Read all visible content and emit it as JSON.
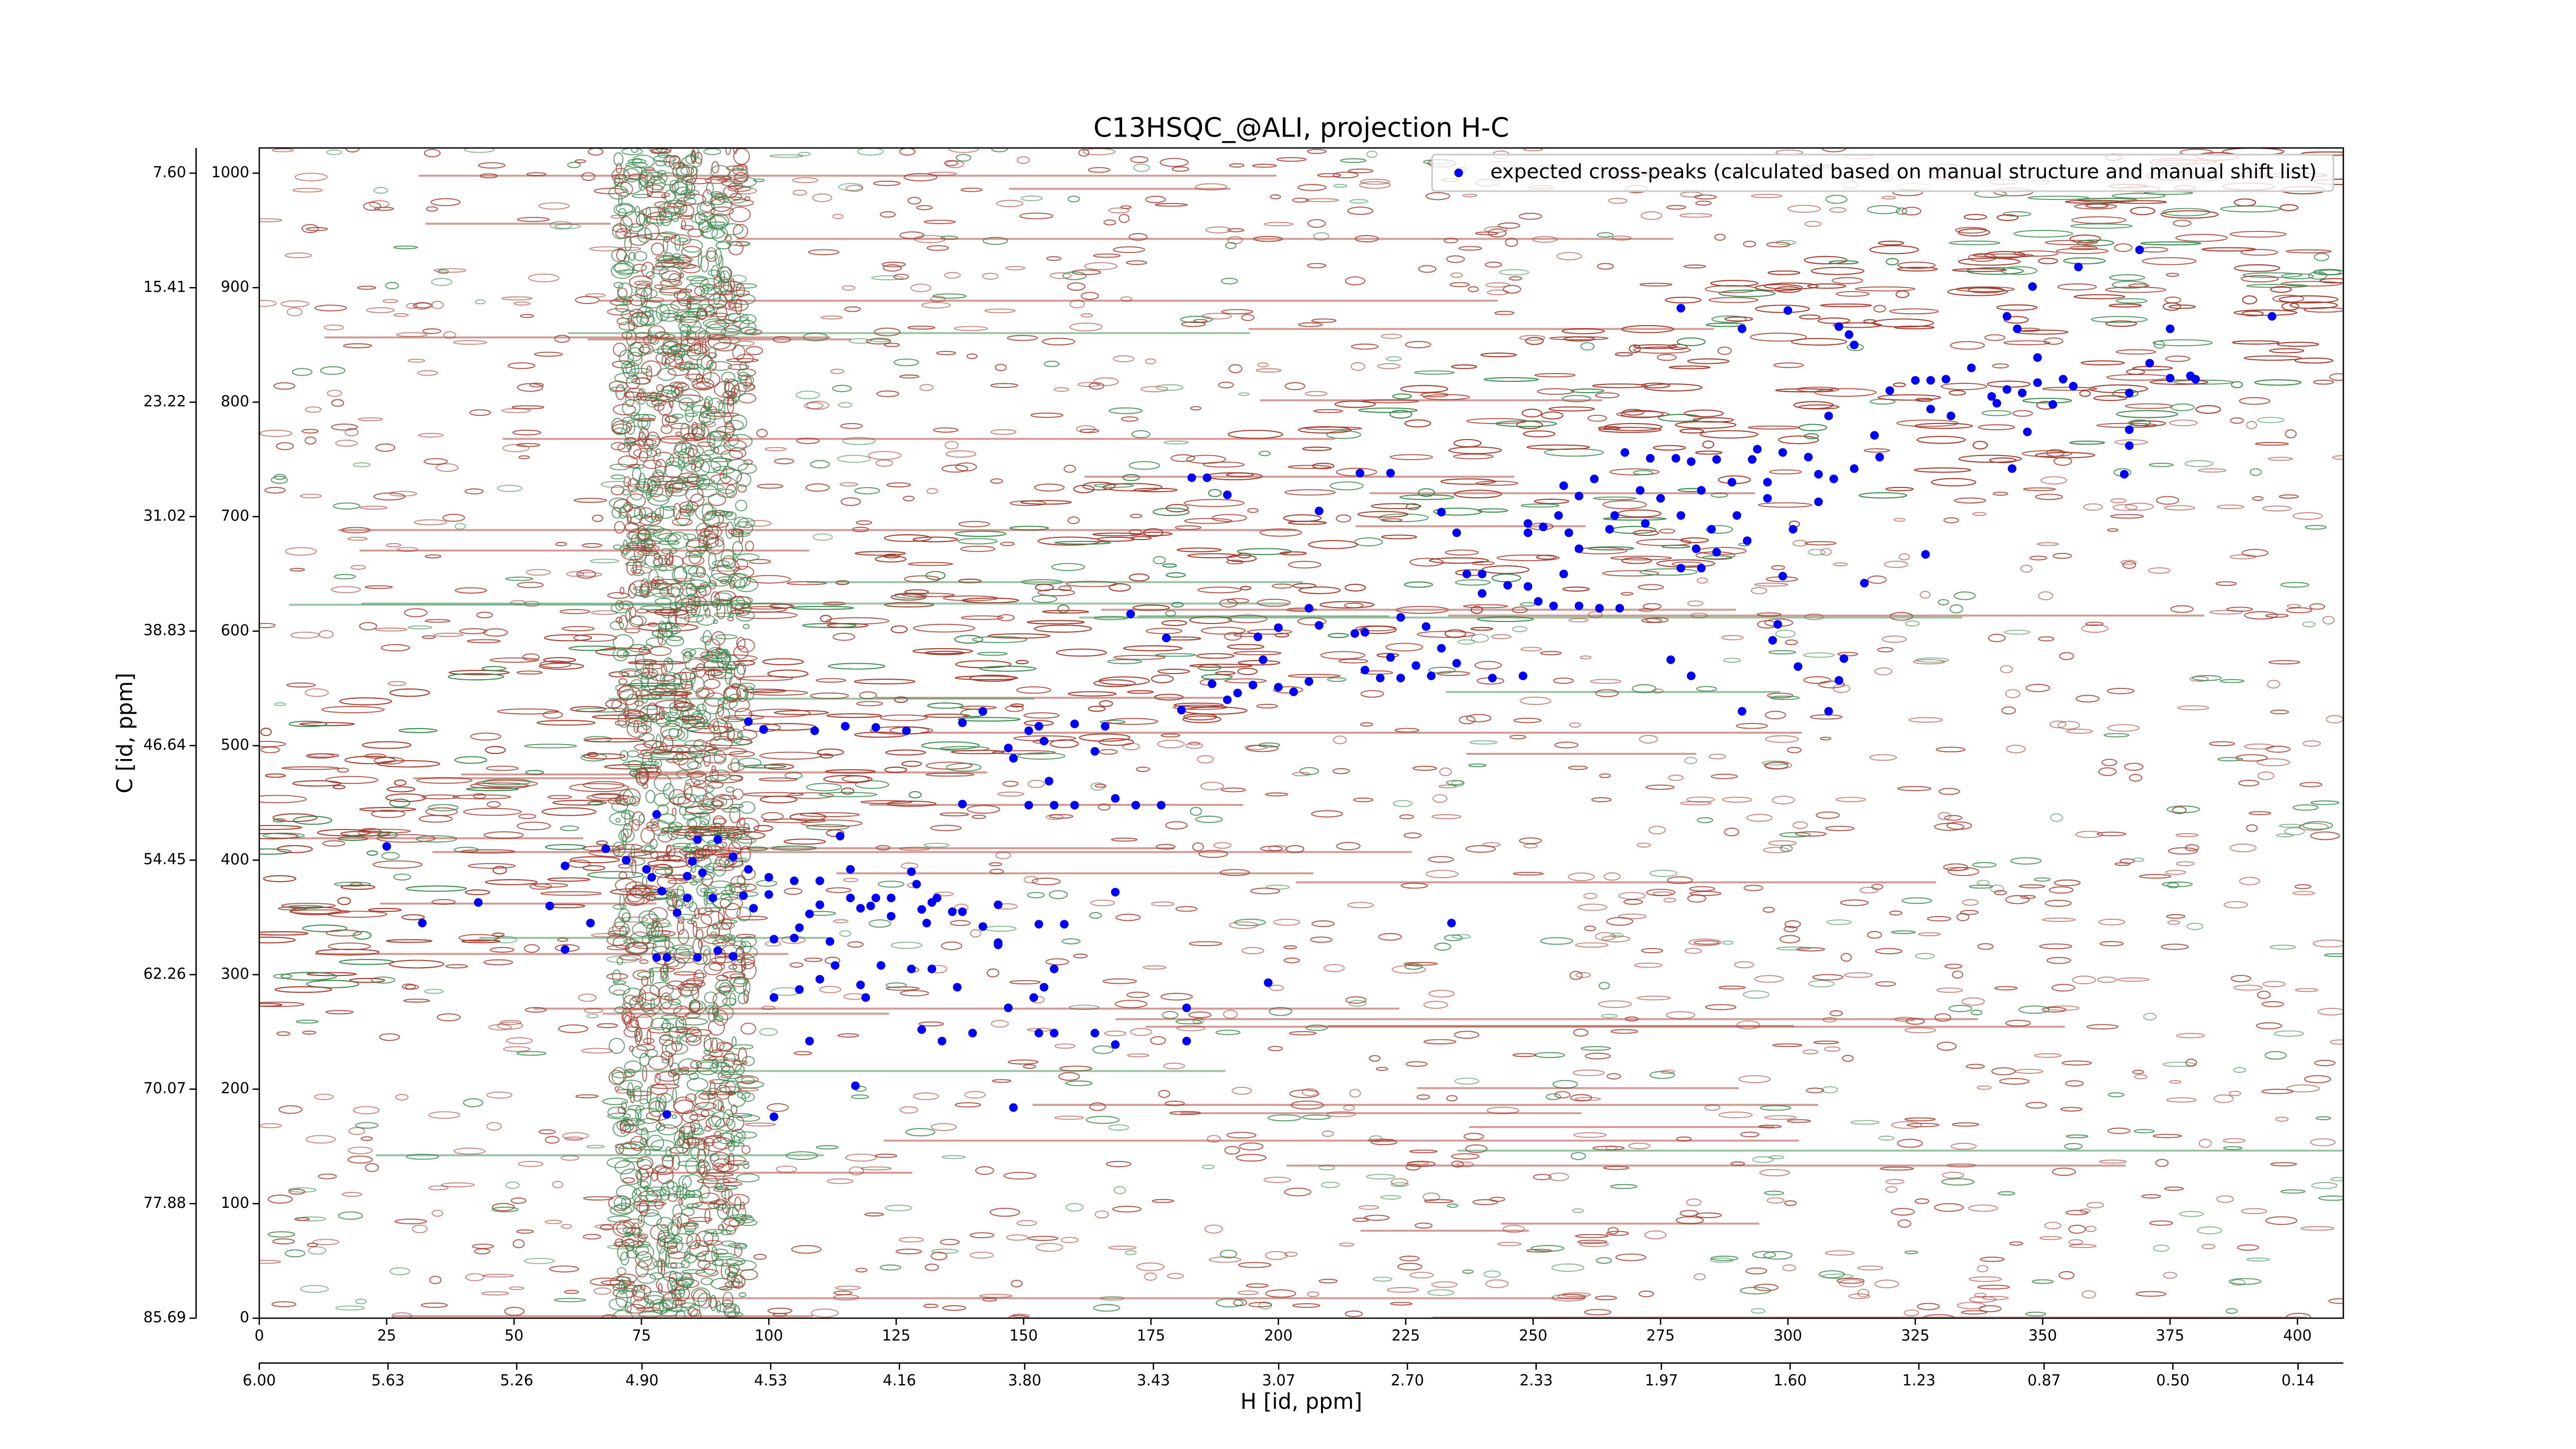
{
  "chart_data": {
    "type": "scatter",
    "title": "C13HSQC_@ALI, projection H-C",
    "xlabel": "H [id, ppm]",
    "ylabel": "C [id, ppm]",
    "legend": "upper right",
    "xlim": [
      0,
      409
    ],
    "xticks": [
      0,
      25,
      50,
      75,
      100,
      125,
      150,
      175,
      200,
      225,
      250,
      275,
      300,
      325,
      350,
      375,
      400
    ],
    "ylim": [
      0,
      1022
    ],
    "yticks": [
      0,
      100,
      200,
      300,
      400,
      500,
      600,
      700,
      800,
      900,
      1000
    ],
    "x2lim": [
      6.0,
      0.01
    ],
    "x2ticks": [
      {
        "value": 6.0,
        "label": "6.00"
      },
      5.63,
      5.26,
      {
        "value": 4.9,
        "label": "4.90"
      },
      4.53,
      4.16,
      {
        "value": 3.8,
        "label": "3.80"
      },
      3.43,
      3.07,
      {
        "value": 2.7,
        "label": "2.70"
      },
      2.33,
      1.97,
      {
        "value": 1.6,
        "label": "1.60"
      },
      1.23,
      0.87,
      {
        "value": 0.5,
        "label": "0.50"
      },
      0.14
    ],
    "y2lim": [
      85.69,
      5.88
    ],
    "y2ticks": [
      85.69,
      77.88,
      70.07,
      62.26,
      54.45,
      46.64,
      38.83,
      31.02,
      23.22,
      15.41,
      {
        "value": 7.6,
        "label": "7.60"
      }
    ],
    "series": [
      {
        "name": "expected cross-peaks (calculated based on manual structure and manual shift list)",
        "color": "#0000ff",
        "x": [
          369,
          357,
          348,
          279,
          300,
          395,
          291,
          310,
          312,
          375,
          313,
          343,
          345,
          349,
          371,
          375,
          379,
          380,
          336,
          331,
          325,
          328,
          320,
          340,
          343,
          346,
          349,
          354,
          356,
          367,
          352,
          341,
          332,
          308,
          317,
          328,
          367,
          367,
          347,
          344,
          366,
          268,
          273,
          278,
          281,
          286,
          293,
          294,
          299,
          304,
          306,
          309,
          313,
          318,
          296,
          289,
          283,
          275,
          271,
          262,
          259,
          256,
          266,
          272,
          279,
          285,
          290,
          296,
          301,
          306,
          282,
          279,
          283,
          286,
          292,
          255,
          252,
          249,
          257,
          259,
          256,
          249,
          251,
          254,
          259,
          263,
          267,
          245,
          240,
          237,
          240,
          235,
          249,
          232,
          299,
          315,
          327,
          298,
          297,
          277,
          281,
          291,
          302,
          311,
          310,
          308,
          265,
          183,
          186,
          190,
          216,
          222,
          208,
          171,
          178,
          196,
          200,
          206,
          208,
          215,
          217,
          224,
          229,
          232,
          227,
          224,
          230,
          220,
          217,
          206,
          203,
          200,
          195,
          192,
          190,
          187,
          181,
          197,
          235,
          242,
          248,
          222,
          96,
          99,
          109,
          115,
          121,
          127,
          138,
          142,
          147,
          148,
          151,
          153,
          160,
          166,
          164,
          154,
          155,
          151,
          156,
          160,
          168,
          172,
          177,
          138,
          25,
          32,
          43,
          57,
          60,
          60,
          65,
          68,
          72,
          76,
          78,
          77,
          79,
          78,
          80,
          82,
          84,
          86,
          90,
          85,
          84,
          86,
          89,
          87,
          93,
          96,
          95,
          97,
          100,
          93,
          100,
          101,
          105,
          105,
          106,
          110,
          110,
          108,
          114,
          116,
          116,
          118,
          120,
          121,
          124,
          124,
          128,
          129,
          130,
          131,
          132,
          133,
          136,
          138,
          142,
          145,
          145,
          153,
          158,
          168,
          112,
          113,
          118,
          122,
          128,
          132,
          137,
          101,
          106,
          110,
          90,
          119,
          147,
          154,
          156,
          152,
          145,
          156,
          153,
          130,
          134,
          140,
          164,
          168,
          182,
          182,
          198,
          234,
          108,
          117,
          148,
          101,
          80
        ],
        "values": [
          933,
          918,
          901,
          882,
          880,
          875,
          864,
          866,
          859,
          864,
          850,
          875,
          864,
          839,
          834,
          821,
          823,
          820,
          830,
          820,
          819,
          819,
          810,
          805,
          811,
          808,
          817,
          820,
          814,
          808,
          798,
          799,
          788,
          788,
          771,
          794,
          776,
          762,
          774,
          742,
          737,
          756,
          751,
          751,
          748,
          750,
          750,
          759,
          756,
          752,
          737,
          733,
          742,
          752,
          730,
          730,
          723,
          716,
          723,
          733,
          718,
          727,
          701,
          694,
          701,
          689,
          701,
          716,
          689,
          713,
          672,
          655,
          655,
          669,
          679,
          701,
          691,
          686,
          686,
          672,
          650,
          639,
          626,
          622,
          622,
          620,
          620,
          640,
          633,
          650,
          650,
          686,
          694,
          704,
          648,
          642,
          667,
          606,
          592,
          575,
          561,
          530,
          569,
          576,
          557,
          530,
          689,
          734,
          734,
          719,
          738,
          738,
          705,
          615,
          594,
          595,
          603,
          620,
          605,
          598,
          599,
          612,
          604,
          585,
          570,
          559,
          561,
          559,
          566,
          556,
          547,
          551,
          553,
          546,
          540,
          554,
          531,
          575,
          572,
          559,
          561,
          577,
          521,
          514,
          513,
          517,
          516,
          513,
          520,
          530,
          498,
          489,
          513,
          517,
          519,
          517,
          495,
          504,
          469,
          448,
          448,
          448,
          454,
          448,
          448,
          449,
          412,
          345,
          363,
          360,
          395,
          322,
          345,
          410,
          400,
          392,
          440,
          385,
          373,
          315,
          315,
          354,
          386,
          418,
          418,
          399,
          367,
          315,
          367,
          389,
          403,
          392,
          369,
          358,
          370,
          316,
          385,
          331,
          382,
          332,
          341,
          382,
          361,
          353,
          421,
          392,
          367,
          358,
          360,
          367,
          351,
          367,
          390,
          379,
          357,
          345,
          363,
          367,
          355,
          355,
          342,
          328,
          361,
          344,
          344,
          372,
          329,
          308,
          291,
          308,
          305,
          305,
          289,
          280,
          287,
          296,
          321,
          280,
          271,
          289,
          305,
          280,
          326,
          249,
          249,
          252,
          242,
          249,
          249,
          239,
          271,
          242,
          293,
          345,
          242,
          203,
          184,
          176,
          178
        ]
      }
    ]
  }
}
